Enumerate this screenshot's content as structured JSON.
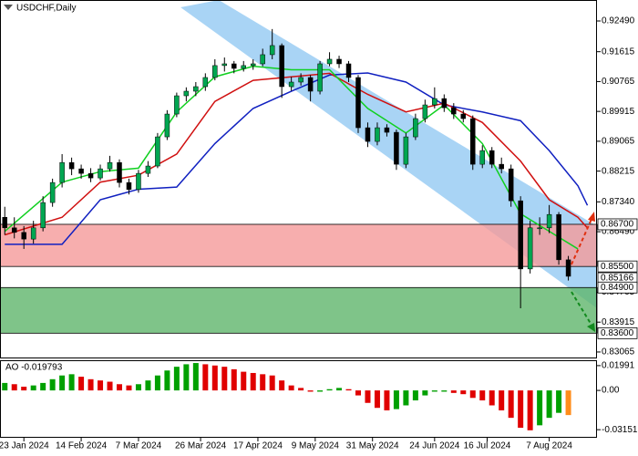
{
  "chart_data": {
    "type": "candlestick",
    "title": "USDCHF,Daily",
    "up_color": "#00a651",
    "down_color": "#000000",
    "xlim": [
      -0.5,
      62
    ],
    "ylim": [
      0.82882,
      0.93087
    ],
    "yticks": [
      {
        "value": 0.9249,
        "label": "0.92490"
      },
      {
        "value": 0.91615,
        "label": "0.91615"
      },
      {
        "value": 0.90765,
        "label": "0.90765"
      },
      {
        "value": 0.89915,
        "label": "0.89915"
      },
      {
        "value": 0.89065,
        "label": "0.89065"
      },
      {
        "value": 0.88215,
        "label": "0.88215"
      },
      {
        "value": 0.8734,
        "label": "0.87340"
      },
      {
        "value": 0.8649,
        "label": "0.86490"
      },
      {
        "value": 0.84765,
        "label": "0.84765"
      },
      {
        "value": 0.83915,
        "label": "0.83915"
      },
      {
        "value": 0.83065,
        "label": "0.83065"
      }
    ],
    "xticks": [
      {
        "value": 2,
        "label": "23 Jan 2024"
      },
      {
        "value": 8,
        "label": "14 Feb 2024"
      },
      {
        "value": 14,
        "label": "7 Mar 2024"
      },
      {
        "value": 20.5,
        "label": "26 Mar 2024"
      },
      {
        "value": 26.5,
        "label": "17 Apr 2024"
      },
      {
        "value": 32.5,
        "label": "9 May 2024"
      },
      {
        "value": 38.5,
        "label": "31 May 2024"
      },
      {
        "value": 45,
        "label": "24 Jun 2024"
      },
      {
        "value": 50.5,
        "label": "16 Jul 2024"
      },
      {
        "value": 57,
        "label": "7 Aug 2024"
      }
    ],
    "candles": [
      [
        0.869,
        0.872,
        0.864,
        0.866
      ],
      [
        0.866,
        0.869,
        0.863,
        0.8647
      ],
      [
        0.8647,
        0.8665,
        0.86,
        0.8628
      ],
      [
        0.8628,
        0.868,
        0.8615,
        0.866
      ],
      [
        0.866,
        0.875,
        0.865,
        0.8732
      ],
      [
        0.8732,
        0.88,
        0.872,
        0.8789
      ],
      [
        0.8789,
        0.887,
        0.8775,
        0.8846
      ],
      [
        0.8846,
        0.886,
        0.881,
        0.8828
      ],
      [
        0.8828,
        0.884,
        0.88,
        0.8815
      ],
      [
        0.8815,
        0.883,
        0.879,
        0.8802
      ],
      [
        0.8802,
        0.884,
        0.8795,
        0.8828
      ],
      [
        0.8828,
        0.8865,
        0.882,
        0.8846
      ],
      [
        0.8846,
        0.8855,
        0.8775,
        0.8789
      ],
      [
        0.8789,
        0.88,
        0.8755,
        0.8769
      ],
      [
        0.8769,
        0.8825,
        0.876,
        0.8815
      ],
      [
        0.8815,
        0.885,
        0.8805,
        0.8836
      ],
      [
        0.8836,
        0.893,
        0.883,
        0.8919
      ],
      [
        0.8919,
        0.8995,
        0.891,
        0.8984
      ],
      [
        0.8984,
        0.9045,
        0.8975,
        0.9036
      ],
      [
        0.9036,
        0.906,
        0.902,
        0.9049
      ],
      [
        0.9049,
        0.9075,
        0.9035,
        0.9062
      ],
      [
        0.9062,
        0.91,
        0.905,
        0.9088
      ],
      [
        0.9088,
        0.914,
        0.908,
        0.9122
      ],
      [
        0.9122,
        0.9145,
        0.9105,
        0.9127
      ],
      [
        0.9127,
        0.9135,
        0.91,
        0.9114
      ],
      [
        0.9114,
        0.9135,
        0.9105,
        0.9122
      ],
      [
        0.9122,
        0.914,
        0.911,
        0.9127
      ],
      [
        0.9127,
        0.917,
        0.912,
        0.9153
      ],
      [
        0.9153,
        0.9226,
        0.914,
        0.9179
      ],
      [
        0.9179,
        0.9185,
        0.903,
        0.9062
      ],
      [
        0.9062,
        0.909,
        0.905,
        0.9075
      ],
      [
        0.9075,
        0.91,
        0.9065,
        0.9088
      ],
      [
        0.9088,
        0.9095,
        0.902,
        0.9049
      ],
      [
        0.9049,
        0.9135,
        0.904,
        0.9127
      ],
      [
        0.9127,
        0.916,
        0.912,
        0.914
      ],
      [
        0.914,
        0.915,
        0.9115,
        0.9127
      ],
      [
        0.9127,
        0.9135,
        0.9075,
        0.9088
      ],
      [
        0.9088,
        0.9095,
        0.893,
        0.8945
      ],
      [
        0.8945,
        0.896,
        0.889,
        0.8906
      ],
      [
        0.8906,
        0.896,
        0.8895,
        0.8945
      ],
      [
        0.8945,
        0.8955,
        0.892,
        0.8932
      ],
      [
        0.8932,
        0.894,
        0.8825,
        0.8841
      ],
      [
        0.8841,
        0.893,
        0.883,
        0.8919
      ],
      [
        0.8919,
        0.8985,
        0.891,
        0.8971
      ],
      [
        0.8971,
        0.9025,
        0.896,
        0.901
      ],
      [
        0.901,
        0.906,
        0.9,
        0.9028
      ],
      [
        0.9028,
        0.904,
        0.899,
        0.9002
      ],
      [
        0.9002,
        0.9015,
        0.897,
        0.8984
      ],
      [
        0.8984,
        0.8995,
        0.896,
        0.8971
      ],
      [
        0.8971,
        0.898,
        0.8825,
        0.8841
      ],
      [
        0.8841,
        0.8895,
        0.883,
        0.888
      ],
      [
        0.888,
        0.889,
        0.883,
        0.8841
      ],
      [
        0.8841,
        0.886,
        0.8815,
        0.8828
      ],
      [
        0.8828,
        0.884,
        0.872,
        0.8737
      ],
      [
        0.8737,
        0.875,
        0.8431,
        0.8543
      ],
      [
        0.8543,
        0.868,
        0.853,
        0.866
      ],
      [
        0.866,
        0.869,
        0.864,
        0.866
      ],
      [
        0.866,
        0.8725,
        0.8645,
        0.8698
      ],
      [
        0.8698,
        0.8705,
        0.8555,
        0.8569
      ],
      [
        0.8569,
        0.858,
        0.851,
        0.8522
      ]
    ],
    "ma_series": [
      {
        "color": "#1020c0",
        "x": [
          0,
          6,
          10,
          14,
          18,
          22,
          26,
          30,
          34,
          38,
          42,
          46,
          50,
          54,
          57,
          60,
          61
        ],
        "values": [
          0.8613,
          0.8613,
          0.874,
          0.877,
          0.8776,
          0.89,
          0.9,
          0.9049,
          0.9095,
          0.9101,
          0.9075,
          0.901,
          0.899,
          0.8965,
          0.888,
          0.878,
          0.8724
        ]
      },
      {
        "color": "#d01010",
        "x": [
          0,
          6,
          10,
          14,
          18,
          22,
          26,
          30,
          34,
          38,
          42,
          46,
          50,
          54,
          57,
          60,
          61
        ],
        "values": [
          0.864,
          0.869,
          0.879,
          0.881,
          0.887,
          0.902,
          0.908,
          0.909,
          0.91,
          0.904,
          0.899,
          0.9015,
          0.896,
          0.885,
          0.874,
          0.869,
          0.866
        ]
      },
      {
        "color": "#10d020",
        "x": [
          0,
          6,
          10,
          14,
          18,
          22,
          26,
          30,
          34,
          38,
          42,
          46,
          50,
          54,
          57,
          60
        ],
        "values": [
          0.865,
          0.879,
          0.882,
          0.883,
          0.899,
          0.909,
          0.912,
          0.911,
          0.911,
          0.9,
          0.893,
          0.901,
          0.89,
          0.87,
          0.865,
          0.86
        ]
      }
    ],
    "channel": {
      "color": "#8cc6f2",
      "upper": [
        [
          22.4,
          0.93087
        ],
        [
          62,
          0.86648
        ]
      ],
      "lower": [
        [
          18.4,
          0.9288
        ],
        [
          62,
          0.8431
        ]
      ]
    },
    "zones": [
      {
        "from": 0.867,
        "to": 0.855,
        "color": "#f59a9a"
      },
      {
        "from": 0.849,
        "to": 0.836,
        "color": "#5fb56c"
      }
    ],
    "levels": [
      {
        "value": 0.867,
        "label": "0.86700"
      },
      {
        "value": 0.855,
        "label": "0.85500"
      },
      {
        "value": 0.85166,
        "label": "0.85166"
      },
      {
        "value": 0.849,
        "label": "0.84900"
      },
      {
        "value": 0.836,
        "label": "0.83600"
      }
    ],
    "indicator": {
      "type": "bar",
      "title": "AO -0.019793",
      "up_color": "#00a000",
      "down_color": "#e00000",
      "last_color": "#ff8c1a",
      "ylim": [
        -0.038,
        0.0235
      ],
      "yticks": [
        0.01991,
        {
          "value": 0,
          "label": "0.00"
        },
        -0.031517
      ],
      "values": [
        0.006,
        0.005,
        0.003,
        0.004,
        0.006,
        0.009,
        0.012,
        0.013,
        0.011,
        0.009,
        0.008,
        0.007,
        0.005,
        0.004,
        0.005,
        0.008,
        0.012,
        0.016,
        0.019,
        0.021,
        0.022,
        0.021,
        0.02,
        0.019,
        0.017,
        0.015,
        0.014,
        0.013,
        0.012,
        0.008,
        0.004,
        0.002,
        -0.001,
        -0.001,
        0.001,
        0.002,
        0.001,
        -0.004,
        -0.01,
        -0.014,
        -0.016,
        -0.015,
        -0.012,
        -0.008,
        -0.004,
        -0.001,
        -0.001,
        -0.002,
        -0.003,
        -0.006,
        -0.008,
        -0.012,
        -0.016,
        -0.022,
        -0.03,
        -0.032,
        -0.028,
        -0.022,
        -0.018,
        -0.019793
      ]
    }
  }
}
